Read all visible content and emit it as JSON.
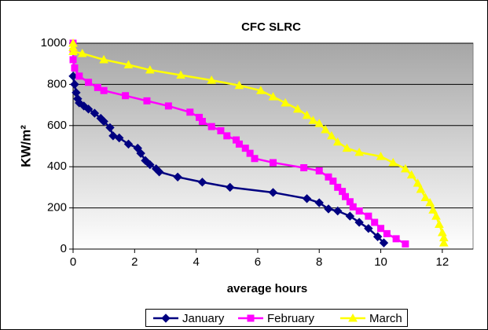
{
  "chart_data": {
    "type": "line",
    "title": "CFC SLRC",
    "x_label": "average hours",
    "y_label": "KW/m²",
    "xlim": [
      0,
      13
    ],
    "xticks": [
      0,
      2,
      4,
      6,
      8,
      10,
      12
    ],
    "ylim": [
      0,
      1000
    ],
    "yticks": [
      0,
      200,
      400,
      600,
      800,
      1000
    ],
    "grid": true,
    "legend": "bottom",
    "series": [
      {
        "name": "January",
        "color": "#000080",
        "marker": "diamond",
        "x": [
          0,
          0.05,
          0.1,
          0.15,
          0.2,
          0.35,
          0.5,
          0.7,
          0.9,
          1.0,
          1.2,
          1.3,
          1.5,
          1.8,
          2.1,
          2.2,
          2.35,
          2.5,
          2.7,
          2.8,
          3.4,
          4.2,
          5.1,
          6.5,
          7.6,
          8.0,
          8.3,
          8.6,
          9.0,
          9.3,
          9.6,
          9.9,
          10.1
        ],
        "values": [
          840,
          800,
          760,
          730,
          710,
          695,
          680,
          660,
          635,
          620,
          590,
          550,
          540,
          510,
          490,
          465,
          430,
          410,
          390,
          375,
          350,
          325,
          300,
          275,
          245,
          225,
          195,
          185,
          160,
          130,
          100,
          60,
          30
        ]
      },
      {
        "name": "February",
        "color": "#ff00ff",
        "marker": "square",
        "x": [
          0,
          0,
          0,
          0.05,
          0.2,
          0.5,
          0.8,
          1.0,
          1.7,
          2.4,
          3.1,
          3.8,
          4.1,
          4.2,
          4.5,
          4.8,
          5.0,
          5.3,
          5.4,
          5.6,
          5.75,
          5.9,
          6.5,
          7.5,
          8.0,
          8.3,
          8.45,
          8.6,
          8.75,
          8.85,
          9.0,
          9.1,
          9.3,
          9.6,
          9.8,
          10.0,
          10.2,
          10.5,
          10.8
        ],
        "values": [
          1000,
          960,
          920,
          880,
          840,
          810,
          785,
          770,
          745,
          720,
          695,
          665,
          640,
          620,
          595,
          575,
          550,
          530,
          510,
          490,
          465,
          440,
          420,
          395,
          380,
          350,
          330,
          300,
          280,
          255,
          230,
          205,
          185,
          160,
          130,
          100,
          75,
          50,
          25
        ]
      },
      {
        "name": "March",
        "color": "#ffff00",
        "marker": "triangle",
        "x": [
          0,
          0,
          0,
          0.3,
          1.0,
          1.8,
          2.5,
          3.5,
          4.5,
          5.4,
          6.1,
          6.5,
          6.9,
          7.3,
          7.6,
          7.8,
          8.0,
          8.2,
          8.4,
          8.6,
          8.9,
          9.3,
          10.0,
          10.4,
          10.8,
          11.0,
          11.2,
          11.3,
          11.45,
          11.6,
          11.7,
          11.8,
          11.9,
          12.0,
          12.05,
          12.05
        ],
        "values": [
          1000,
          980,
          960,
          950,
          920,
          895,
          870,
          845,
          820,
          795,
          770,
          740,
          710,
          680,
          650,
          625,
          610,
          580,
          550,
          520,
          490,
          470,
          450,
          420,
          390,
          360,
          320,
          290,
          250,
          225,
          190,
          160,
          120,
          80,
          55,
          30
        ]
      }
    ]
  }
}
